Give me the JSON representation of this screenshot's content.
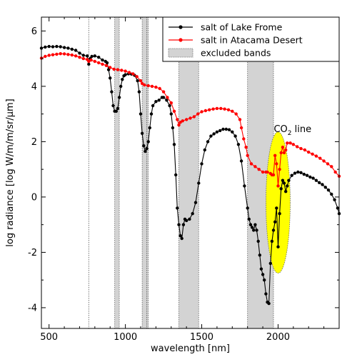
{
  "chart_data": {
    "type": "line",
    "xlabel": "wavelength [nm]",
    "ylabel": "log radiance [log W/m/m/sr/µm]",
    "xlim": [
      450,
      2400
    ],
    "ylim": [
      -4.75,
      6.5
    ],
    "xticks": [
      500,
      1000,
      1500,
      2000
    ],
    "yticks": [
      -4,
      -2,
      0,
      2,
      4,
      6
    ],
    "grid": false,
    "legend_position": "top-right",
    "vertical_lines_nm": [
      760,
      1140
    ],
    "excluded_bands": {
      "label": "excluded bands",
      "ranges_nm": [
        [
          930,
          960
        ],
        [
          1110,
          1150
        ],
        [
          1350,
          1480
        ],
        [
          1800,
          1970
        ]
      ]
    },
    "annotation": {
      "text_main": "CO",
      "text_sub": "2",
      "text_tail": " line",
      "x": 2000,
      "y": -0.2,
      "color": "#ffff00"
    },
    "series": [
      {
        "name": "salt of Lake Frome",
        "color": "#000000",
        "points": [
          [
            450,
            5.38
          ],
          [
            475,
            5.42
          ],
          [
            500,
            5.44
          ],
          [
            525,
            5.43
          ],
          [
            550,
            5.44
          ],
          [
            575,
            5.43
          ],
          [
            600,
            5.4
          ],
          [
            625,
            5.38
          ],
          [
            650,
            5.34
          ],
          [
            675,
            5.3
          ],
          [
            700,
            5.2
          ],
          [
            725,
            5.12
          ],
          [
            750,
            5.1
          ],
          [
            760,
            4.8
          ],
          [
            770,
            5.0
          ],
          [
            780,
            5.08
          ],
          [
            800,
            5.1
          ],
          [
            825,
            5.05
          ],
          [
            850,
            4.95
          ],
          [
            870,
            4.9
          ],
          [
            880,
            4.85
          ],
          [
            890,
            4.6
          ],
          [
            900,
            4.3
          ],
          [
            910,
            3.8
          ],
          [
            920,
            3.3
          ],
          [
            930,
            3.1
          ],
          [
            940,
            3.1
          ],
          [
            950,
            3.2
          ],
          [
            960,
            3.6
          ],
          [
            970,
            4.0
          ],
          [
            980,
            4.25
          ],
          [
            990,
            4.38
          ],
          [
            1000,
            4.42
          ],
          [
            1020,
            4.45
          ],
          [
            1040,
            4.44
          ],
          [
            1060,
            4.4
          ],
          [
            1080,
            4.2
          ],
          [
            1090,
            3.8
          ],
          [
            1100,
            3.0
          ],
          [
            1110,
            2.3
          ],
          [
            1120,
            1.85
          ],
          [
            1130,
            1.65
          ],
          [
            1140,
            1.75
          ],
          [
            1150,
            2.0
          ],
          [
            1160,
            2.5
          ],
          [
            1170,
            3.0
          ],
          [
            1180,
            3.3
          ],
          [
            1200,
            3.45
          ],
          [
            1220,
            3.5
          ],
          [
            1240,
            3.6
          ],
          [
            1250,
            3.6
          ],
          [
            1270,
            3.5
          ],
          [
            1290,
            3.3
          ],
          [
            1300,
            3.0
          ],
          [
            1310,
            2.5
          ],
          [
            1320,
            1.9
          ],
          [
            1330,
            0.8
          ],
          [
            1340,
            -0.4
          ],
          [
            1350,
            -1.0
          ],
          [
            1360,
            -1.4
          ],
          [
            1370,
            -1.5
          ],
          [
            1380,
            -1.0
          ],
          [
            1390,
            -0.8
          ],
          [
            1400,
            -0.85
          ],
          [
            1420,
            -0.8
          ],
          [
            1440,
            -0.6
          ],
          [
            1460,
            -0.2
          ],
          [
            1480,
            0.5
          ],
          [
            1500,
            1.2
          ],
          [
            1520,
            1.7
          ],
          [
            1540,
            2.0
          ],
          [
            1560,
            2.2
          ],
          [
            1580,
            2.28
          ],
          [
            1600,
            2.35
          ],
          [
            1620,
            2.4
          ],
          [
            1640,
            2.45
          ],
          [
            1660,
            2.45
          ],
          [
            1680,
            2.43
          ],
          [
            1700,
            2.35
          ],
          [
            1720,
            2.2
          ],
          [
            1740,
            1.9
          ],
          [
            1760,
            1.3
          ],
          [
            1780,
            0.4
          ],
          [
            1800,
            -0.4
          ],
          [
            1810,
            -0.8
          ],
          [
            1820,
            -1.0
          ],
          [
            1830,
            -1.1
          ],
          [
            1840,
            -1.2
          ],
          [
            1850,
            -1.0
          ],
          [
            1860,
            -1.2
          ],
          [
            1870,
            -1.6
          ],
          [
            1880,
            -2.1
          ],
          [
            1890,
            -2.6
          ],
          [
            1900,
            -2.8
          ],
          [
            1910,
            -3.0
          ],
          [
            1920,
            -3.5
          ],
          [
            1930,
            -3.8
          ],
          [
            1940,
            -3.85
          ],
          [
            1950,
            -2.4
          ],
          [
            1960,
            -1.6
          ],
          [
            1970,
            -1.2
          ],
          [
            1980,
            -0.9
          ],
          [
            1990,
            -0.4
          ],
          [
            2000,
            -1.8
          ],
          [
            2010,
            -0.6
          ],
          [
            2020,
            0.3
          ],
          [
            2030,
            0.6
          ],
          [
            2040,
            0.5
          ],
          [
            2050,
            0.2
          ],
          [
            2060,
            0.4
          ],
          [
            2070,
            0.6
          ],
          [
            2090,
            0.78
          ],
          [
            2110,
            0.86
          ],
          [
            2130,
            0.9
          ],
          [
            2150,
            0.88
          ],
          [
            2170,
            0.82
          ],
          [
            2190,
            0.78
          ],
          [
            2210,
            0.72
          ],
          [
            2230,
            0.68
          ],
          [
            2250,
            0.6
          ],
          [
            2270,
            0.52
          ],
          [
            2290,
            0.45
          ],
          [
            2310,
            0.35
          ],
          [
            2330,
            0.25
          ],
          [
            2350,
            0.1
          ],
          [
            2370,
            -0.1
          ],
          [
            2390,
            -0.4
          ],
          [
            2400,
            -0.6
          ]
        ]
      },
      {
        "name": "salt in Atacama Desert",
        "color": "#ff0000",
        "points": [
          [
            450,
            5.02
          ],
          [
            475,
            5.08
          ],
          [
            500,
            5.12
          ],
          [
            525,
            5.14
          ],
          [
            550,
            5.16
          ],
          [
            575,
            5.18
          ],
          [
            600,
            5.17
          ],
          [
            625,
            5.15
          ],
          [
            650,
            5.13
          ],
          [
            675,
            5.1
          ],
          [
            700,
            5.05
          ],
          [
            725,
            5.0
          ],
          [
            750,
            4.97
          ],
          [
            760,
            4.9
          ],
          [
            775,
            4.95
          ],
          [
            800,
            4.9
          ],
          [
            825,
            4.85
          ],
          [
            850,
            4.8
          ],
          [
            875,
            4.75
          ],
          [
            900,
            4.68
          ],
          [
            925,
            4.62
          ],
          [
            950,
            4.6
          ],
          [
            975,
            4.58
          ],
          [
            1000,
            4.55
          ],
          [
            1025,
            4.5
          ],
          [
            1050,
            4.45
          ],
          [
            1075,
            4.35
          ],
          [
            1100,
            4.2
          ],
          [
            1110,
            4.1
          ],
          [
            1125,
            4.05
          ],
          [
            1150,
            4.02
          ],
          [
            1175,
            4.0
          ],
          [
            1200,
            3.97
          ],
          [
            1225,
            3.92
          ],
          [
            1250,
            3.8
          ],
          [
            1275,
            3.6
          ],
          [
            1300,
            3.4
          ],
          [
            1320,
            3.1
          ],
          [
            1340,
            2.8
          ],
          [
            1350,
            2.6
          ],
          [
            1360,
            2.7
          ],
          [
            1375,
            2.75
          ],
          [
            1400,
            2.8
          ],
          [
            1425,
            2.85
          ],
          [
            1450,
            2.9
          ],
          [
            1475,
            3.0
          ],
          [
            1500,
            3.08
          ],
          [
            1525,
            3.12
          ],
          [
            1550,
            3.15
          ],
          [
            1575,
            3.18
          ],
          [
            1600,
            3.2
          ],
          [
            1625,
            3.2
          ],
          [
            1650,
            3.18
          ],
          [
            1675,
            3.15
          ],
          [
            1700,
            3.1
          ],
          [
            1725,
            3.0
          ],
          [
            1750,
            2.8
          ],
          [
            1760,
            2.5
          ],
          [
            1775,
            2.1
          ],
          [
            1790,
            1.8
          ],
          [
            1800,
            1.5
          ],
          [
            1825,
            1.2
          ],
          [
            1850,
            1.1
          ],
          [
            1875,
            1.0
          ],
          [
            1900,
            0.9
          ],
          [
            1920,
            0.9
          ],
          [
            1930,
            0.9
          ],
          [
            1950,
            0.85
          ],
          [
            1960,
            0.8
          ],
          [
            1970,
            0.8
          ],
          [
            1980,
            1.5
          ],
          [
            1990,
            1.2
          ],
          [
            2000,
            0.4
          ],
          [
            2010,
            1.0
          ],
          [
            2020,
            1.6
          ],
          [
            2030,
            1.8
          ],
          [
            2040,
            1.6
          ],
          [
            2050,
            1.7
          ],
          [
            2060,
            1.95
          ],
          [
            2080,
            1.95
          ],
          [
            2100,
            1.9
          ],
          [
            2125,
            1.82
          ],
          [
            2150,
            1.75
          ],
          [
            2175,
            1.7
          ],
          [
            2200,
            1.62
          ],
          [
            2225,
            1.55
          ],
          [
            2250,
            1.48
          ],
          [
            2275,
            1.4
          ],
          [
            2300,
            1.3
          ],
          [
            2325,
            1.2
          ],
          [
            2350,
            1.1
          ],
          [
            2375,
            0.9
          ],
          [
            2400,
            0.75
          ]
        ]
      }
    ]
  }
}
